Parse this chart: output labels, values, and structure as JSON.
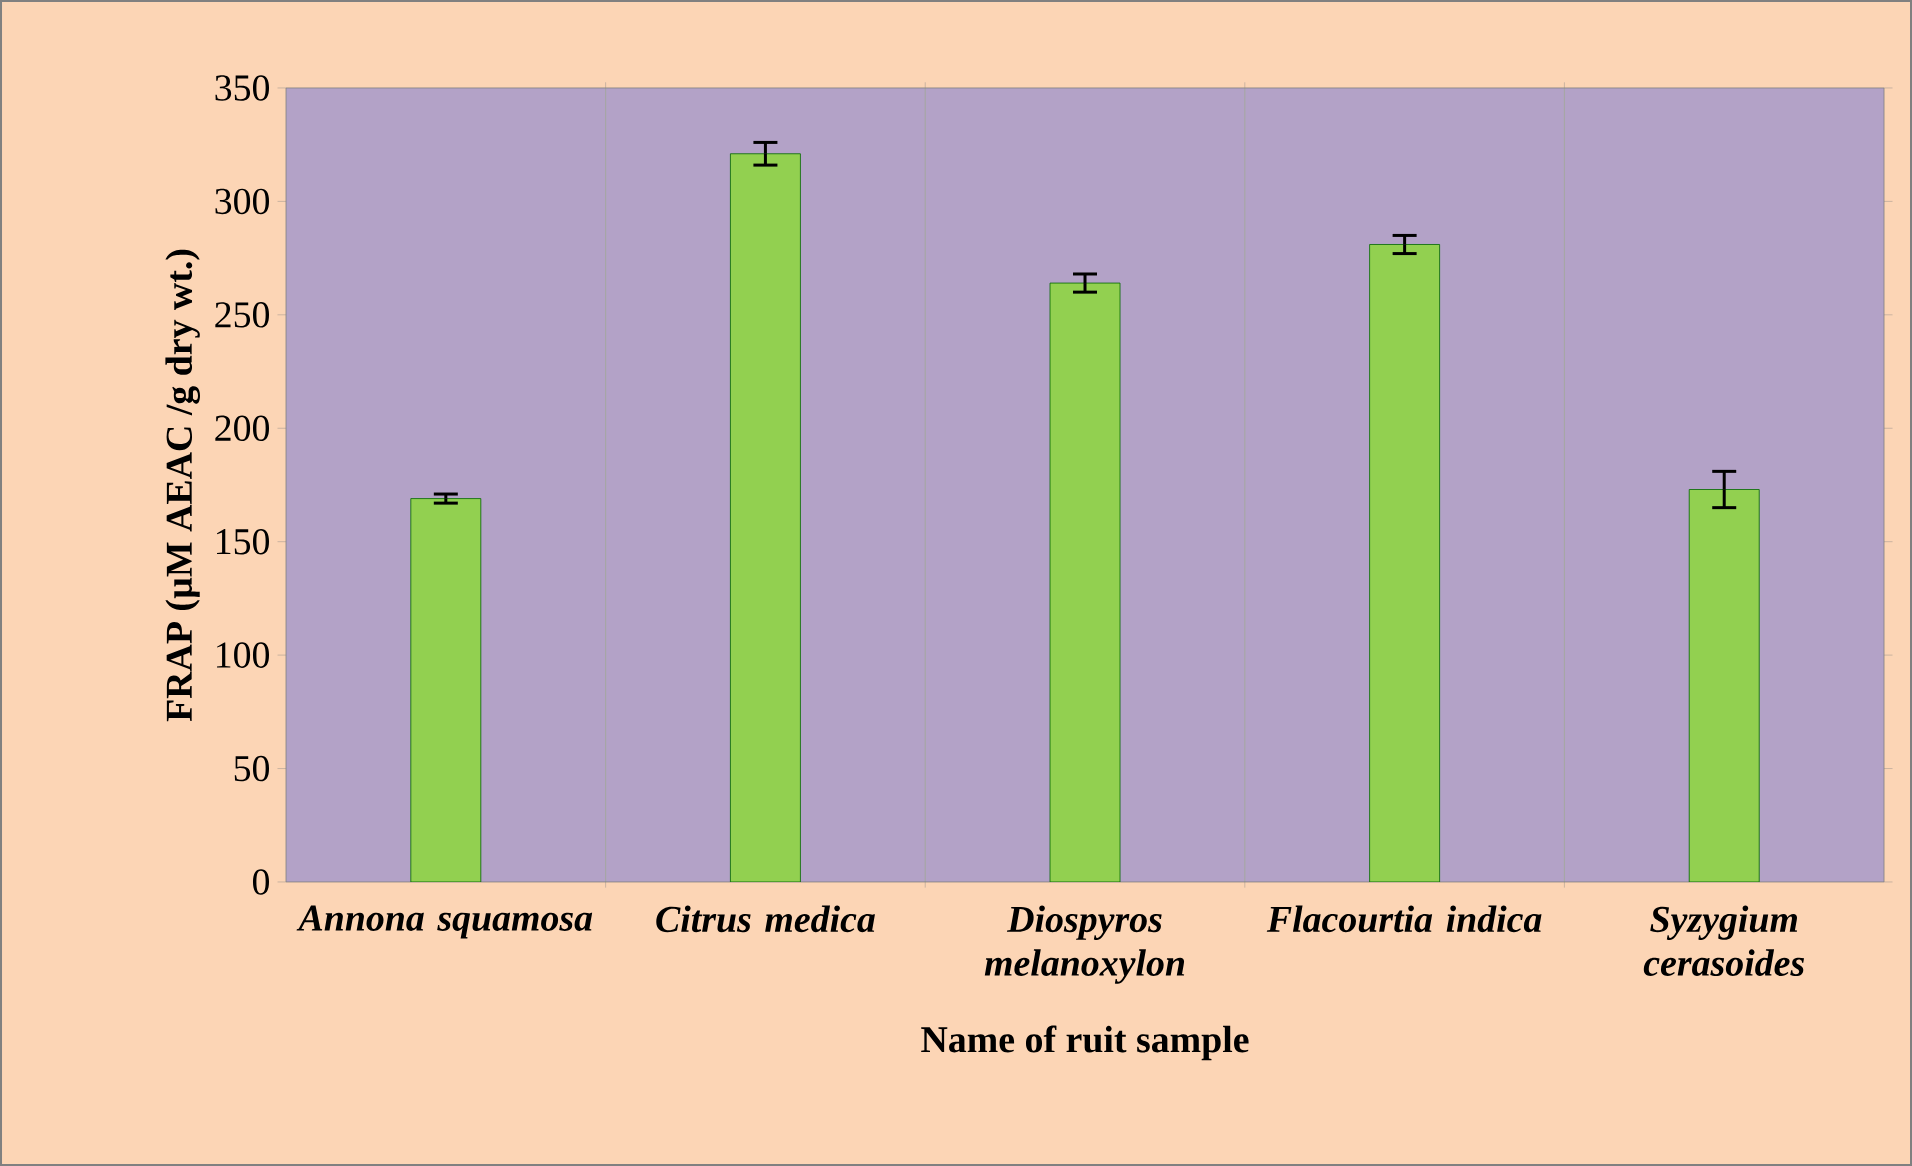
{
  "chart_data": {
    "type": "bar",
    "xlabel": "Name of ruit sample",
    "ylabel": "FRAP (µM AEAC /g dry wt.)",
    "categories": [
      "Annona squamosa",
      "Citrus medica",
      "Diospyros melanoxylon",
      "Flacourtia indica",
      "Syzygium cerasoides"
    ],
    "values": [
      169,
      321,
      264,
      281,
      173
    ],
    "errors": [
      2,
      5,
      4,
      4,
      8
    ],
    "color": "#92d050",
    "ylim": [
      0,
      350
    ],
    "yticks": [
      0,
      50,
      100,
      150,
      200,
      250,
      300,
      350
    ],
    "grid": "x"
  }
}
